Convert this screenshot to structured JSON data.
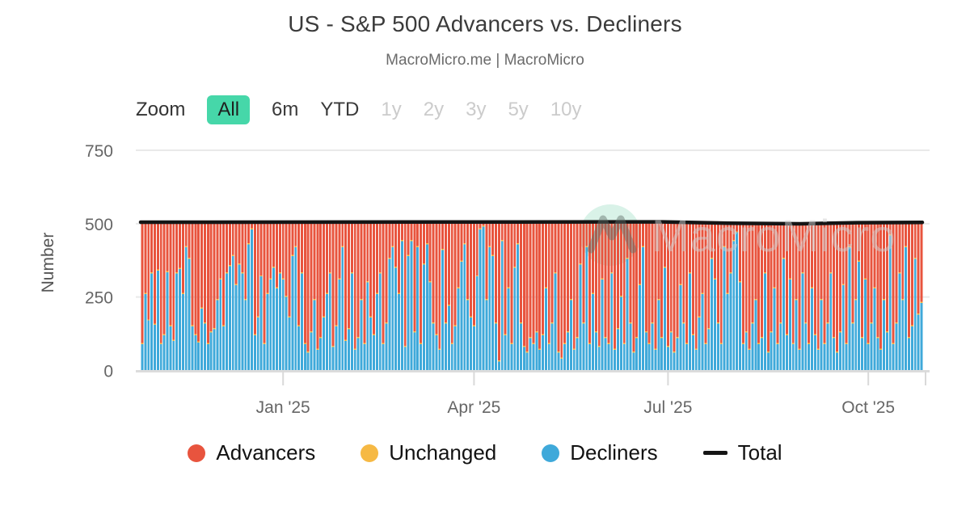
{
  "header": {
    "title": "US - S&P 500 Advancers vs. Decliners",
    "subtitle": "MacroMicro.me | MacroMicro"
  },
  "zoom_bar": {
    "label": "Zoom",
    "buttons": [
      {
        "label": "All",
        "state": "selected"
      },
      {
        "label": "6m",
        "state": "enabled"
      },
      {
        "label": "YTD",
        "state": "enabled"
      },
      {
        "label": "1y",
        "state": "disabled"
      },
      {
        "label": "2y",
        "state": "disabled"
      },
      {
        "label": "3y",
        "state": "disabled"
      },
      {
        "label": "5y",
        "state": "disabled"
      },
      {
        "label": "10y",
        "state": "disabled"
      }
    ],
    "selected_color": "#46d7a9"
  },
  "watermark": {
    "text": "MacroMicro",
    "logo": "macromicro-m-logo",
    "circle_color": "#d9f2e8",
    "text_color": "#cfcfcf"
  },
  "legend": {
    "items": [
      {
        "label": "Advancers",
        "color": "#e8543e",
        "marker": "circle"
      },
      {
        "label": "Unchanged",
        "color": "#f6b944",
        "marker": "circle"
      },
      {
        "label": "Decliners",
        "color": "#3fa9da",
        "marker": "circle"
      },
      {
        "label": "Total",
        "color": "#151515",
        "marker": "line"
      }
    ]
  },
  "chart_data": {
    "type": "bar",
    "stacked": true,
    "title": "US - S&P 500 Advancers vs. Decliners",
    "xlabel": "",
    "ylabel": "Number",
    "ylim": [
      0,
      750
    ],
    "yticks": [
      0,
      250,
      500,
      750
    ],
    "grid": "horizontal",
    "legend_position": "bottom",
    "x_range": [
      "2024-10-28",
      "2025-10-27"
    ],
    "x_is_daily_trading_days": true,
    "x_tick_labels": [
      {
        "label": "Jan '25",
        "index": 45
      },
      {
        "label": "Apr '25",
        "index": 106
      },
      {
        "label": "Jul '25",
        "index": 168
      },
      {
        "label": "Oct '25",
        "index": 232
      }
    ],
    "series": [
      {
        "name": "Advancers",
        "color": "#e8543e",
        "derived": "total - unchanged - decliners"
      },
      {
        "name": "Unchanged",
        "color": "#f6b944",
        "values_constant": 4
      },
      {
        "name": "Decliners",
        "color": "#3fa9da",
        "values": [
          90,
          260,
          170,
          330,
          155,
          340,
          90,
          120,
          335,
          150,
          100,
          330,
          345,
          260,
          420,
          380,
          150,
          120,
          95,
          210,
          160,
          90,
          130,
          140,
          240,
          310,
          150,
          330,
          355,
          390,
          290,
          360,
          330,
          240,
          430,
          480,
          120,
          180,
          320,
          90,
          260,
          310,
          350,
          280,
          330,
          310,
          250,
          180,
          390,
          420,
          150,
          330,
          90,
          60,
          130,
          240,
          70,
          110,
          180,
          260,
          330,
          80,
          150,
          310,
          420,
          100,
          140,
          330,
          70,
          110,
          240,
          90,
          300,
          180,
          120,
          260,
          330,
          90,
          160,
          380,
          420,
          350,
          260,
          440,
          80,
          390,
          440,
          130,
          420,
          90,
          360,
          430,
          300,
          160,
          120,
          70,
          410,
          160,
          220,
          90,
          150,
          280,
          370,
          430,
          240,
          180,
          150,
          320,
          480,
          490,
          240,
          420,
          390,
          160,
          30,
          440,
          120,
          280,
          90,
          350,
          430,
          160,
          80,
          60,
          110,
          90,
          130,
          70,
          120,
          280,
          90,
          160,
          330,
          60,
          40,
          90,
          130,
          240,
          70,
          110,
          360,
          160,
          420,
          90,
          260,
          130,
          80,
          310,
          110,
          90,
          330,
          70,
          140,
          250,
          90,
          380,
          160,
          60,
          110,
          290,
          420,
          130,
          90,
          160,
          70,
          240,
          110,
          350,
          80,
          130,
          60,
          110,
          290,
          160,
          90,
          330,
          120,
          70,
          180,
          260,
          90,
          140,
          380,
          310,
          160,
          90,
          420,
          260,
          330,
          440,
          470,
          300,
          90,
          130,
          70,
          160,
          240,
          90,
          110,
          330,
          60,
          130,
          280,
          90,
          160,
          380,
          120,
          310,
          90,
          240,
          70,
          330,
          160,
          90,
          280,
          120,
          70,
          240,
          90,
          160,
          330,
          110,
          60,
          130,
          290,
          90,
          420,
          160,
          240,
          370,
          110,
          310,
          90,
          160,
          280,
          110,
          70,
          240,
          130,
          460,
          90,
          160,
          330,
          240,
          420,
          110,
          150,
          380,
          190,
          230
        ]
      },
      {
        "name": "Total",
        "type": "line",
        "color": "#151515",
        "value": 503
      }
    ]
  }
}
